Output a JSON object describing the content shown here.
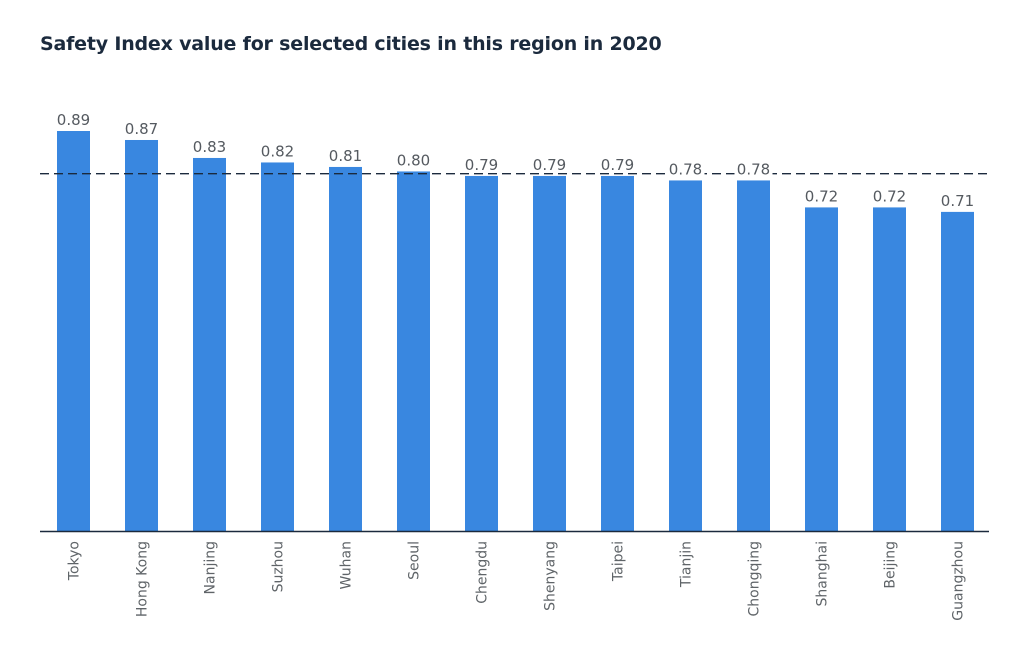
{
  "chart_data": {
    "type": "bar",
    "title": "Safety Index value for selected cities in this region in 2020",
    "xlabel": "",
    "ylabel": "",
    "ylim": [
      0,
      0.89
    ],
    "grid": false,
    "categories": [
      "Tokyo",
      "Hong Kong",
      "Nanjing",
      "Suzhou",
      "Wuhan",
      "Seoul",
      "Chengdu",
      "Shenyang",
      "Taipei",
      "Tianjin",
      "Chongqing",
      "Shanghai",
      "Beijing",
      "Guangzhou"
    ],
    "values": [
      0.89,
      0.87,
      0.83,
      0.82,
      0.81,
      0.8,
      0.79,
      0.79,
      0.79,
      0.78,
      0.78,
      0.72,
      0.72,
      0.71
    ],
    "value_labels": [
      "0.89",
      "0.87",
      "0.83",
      "0.82",
      "0.81",
      "0.80",
      "0.79",
      "0.79",
      "0.79",
      "0.78",
      "0.78",
      "0.72",
      "0.72",
      "0.71"
    ],
    "reference_line": {
      "style": "dashed",
      "value": 0.795
    },
    "colors": {
      "bar": "#3987e0",
      "axis": "#1b2a3d",
      "reference": "#1b2a3d",
      "title": "#1b2a3d"
    }
  }
}
